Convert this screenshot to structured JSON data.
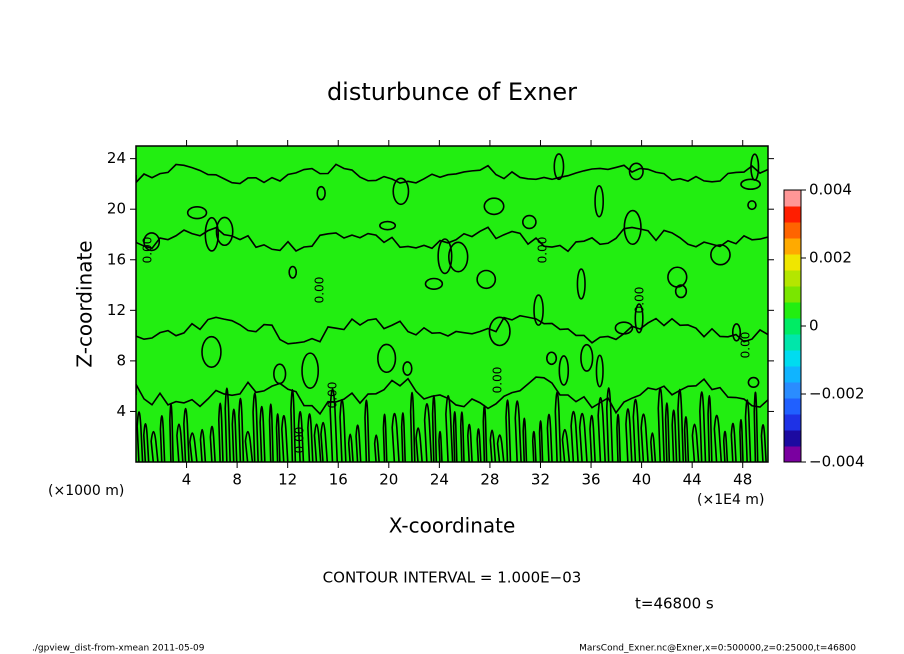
{
  "chart_data": {
    "type": "contour",
    "title": "disturbunce of Exner",
    "xlabel": "X-coordinate",
    "ylabel": "Z-coordinate",
    "x_unit_label": "(×1000 m)",
    "x_unit_label_right": "(×1E4 m)",
    "xlim": [
      0,
      50
    ],
    "xticks": [
      4,
      8,
      12,
      16,
      20,
      24,
      28,
      32,
      36,
      40,
      44,
      48
    ],
    "ylim": [
      0,
      25
    ],
    "yticks": [
      4,
      8,
      12,
      16,
      20,
      24
    ],
    "field_color": "#22ee11",
    "contour_color": "#000000",
    "contour_label": "0.00",
    "clim": [
      -0.004,
      0.004
    ],
    "cticks": [
      {
        "value": -0.004,
        "label": "−0.004"
      },
      {
        "value": -0.002,
        "label": "−0.002"
      },
      0,
      0.002,
      0.004
    ],
    "colorbar_colors": [
      "#7a00a0",
      "#1c0aa0",
      "#1e32e6",
      "#2060ff",
      "#2a8cff",
      "#10b4ff",
      "#00dcf0",
      "#00e6aa",
      "#00ec64",
      "#22ee11",
      "#7ae600",
      "#b4e600",
      "#f0e600",
      "#ffaa00",
      "#ff6400",
      "#ff1e00",
      "#ff9696"
    ],
    "contour_interval": "CONTOUR INTERVAL = 1.000E−03",
    "time_label": "t=46800 s",
    "footer_left": "./gpview_dist-from-xmean  2011-05-09",
    "footer_right": "MarsCond_Exner.nc@Exner,x=0:500000,z=0:25000,t=46800"
  }
}
